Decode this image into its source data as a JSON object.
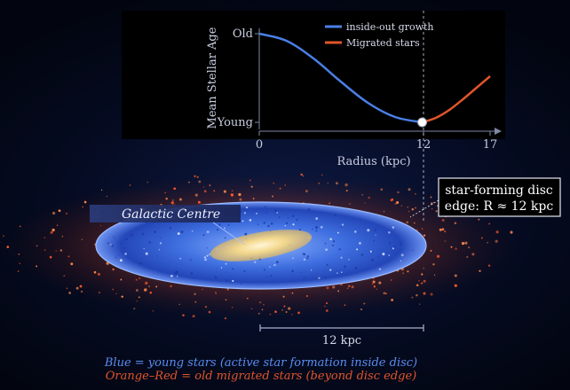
{
  "chart": {
    "ylabel": "Mean Stellar Age",
    "y_ticks": [
      "Old",
      "Young"
    ],
    "x_ticks": [
      "0",
      "12",
      "17"
    ],
    "xlabel": "Radius (kpc)",
    "legend": [
      {
        "name": "inside-out growth",
        "color": "#4a7fe6"
      },
      {
        "name": "Migrated stars",
        "color": "#e0552a"
      }
    ]
  },
  "chart_data": {
    "type": "line",
    "xlabel": "Radius (kpc)",
    "ylabel": "Mean Stellar Age",
    "xlim": [
      0,
      17
    ],
    "y_scale": "qualitative (Young to Old)",
    "series": [
      {
        "name": "inside-out growth",
        "color": "#4a7fe6",
        "x": [
          0,
          2,
          4,
          6,
          8,
          10,
          12
        ],
        "y": [
          1.0,
          0.92,
          0.72,
          0.46,
          0.22,
          0.06,
          0.0
        ]
      },
      {
        "name": "Migrated stars",
        "color": "#e0552a",
        "x": [
          12,
          13,
          14,
          15,
          16,
          17
        ],
        "y": [
          0.0,
          0.05,
          0.14,
          0.26,
          0.39,
          0.52
        ]
      }
    ],
    "marker": {
      "x": 12,
      "y": 0.0
    }
  },
  "labels": {
    "galactic_centre": "Galactic Centre",
    "disc_edge_line1": "star-forming disc",
    "disc_edge_line2": "edge: R ≈ 12 kpc",
    "scale_bar": "12 kpc",
    "caption_blue": "Blue = young stars (active star formation inside disc)",
    "caption_orange": "Orange–Red = old migrated stars (beyond disc edge)"
  },
  "colors": {
    "young": "#4a7fe6",
    "migrated": "#e0552a",
    "caption_blue": "#5b8df0",
    "caption_orange": "#e0552a",
    "panel_bg": "#000000",
    "text": "#c8cde0"
  }
}
